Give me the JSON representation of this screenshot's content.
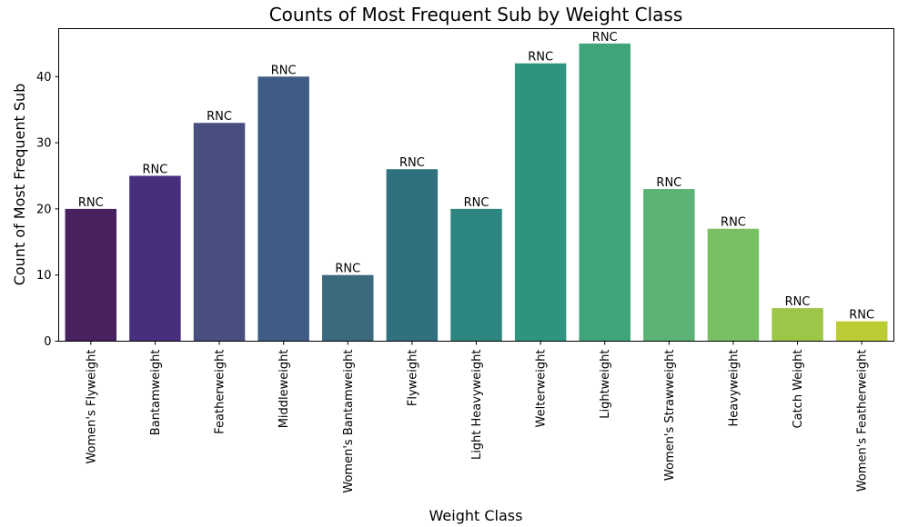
{
  "chart_data": {
    "type": "bar",
    "title": "Counts of Most Frequent Sub by Weight Class",
    "xlabel": "Weight Class",
    "ylabel": "Count of Most Frequent Sub",
    "ylim": [
      0,
      47.25
    ],
    "yticks": [
      0,
      10,
      20,
      30,
      40
    ],
    "grid": false,
    "categories": [
      "Women's Flyweight",
      "Bantamweight",
      "Featherweight",
      "Middleweight",
      "Women's Bantamweight",
      "Flyweight",
      "Light Heavyweight",
      "Welterweight",
      "Lightweight",
      "Women's Strawweight",
      "Heavyweight",
      "Catch Weight",
      "Women's Featherweight"
    ],
    "values": [
      20,
      25,
      33,
      40,
      10,
      26,
      20,
      42,
      45,
      23,
      17,
      5,
      3
    ],
    "labels": [
      "RNC",
      "RNC",
      "RNC",
      "RNC",
      "RNC",
      "RNC",
      "RNC",
      "RNC",
      "RNC",
      "RNC",
      "RNC",
      "RNC",
      "RNC"
    ],
    "colors": [
      "#48215f",
      "#472f7d",
      "#484f7e",
      "#3f5d84",
      "#3b6a7e",
      "#2f717f",
      "#2c857e",
      "#2e937f",
      "#3fa47a",
      "#5ab274",
      "#79bf63",
      "#9dc648",
      "#bccc34"
    ]
  }
}
